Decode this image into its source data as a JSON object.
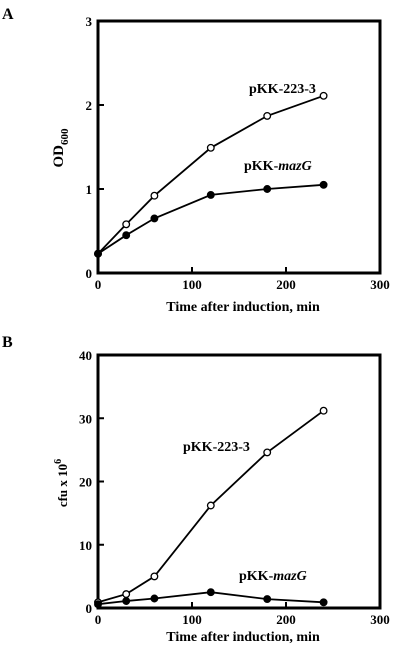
{
  "chart_data": [
    {
      "type": "line",
      "panel_label": "A",
      "xlabel": "Time after induction, min",
      "ylabel_main": "OD",
      "ylabel_sub": "600",
      "xlim": [
        0,
        300
      ],
      "ylim": [
        0,
        3
      ],
      "x_ticks": [
        "0",
        "100",
        "200",
        "300"
      ],
      "y_ticks": [
        "0",
        "1",
        "2",
        "3"
      ],
      "series": [
        {
          "name": "pKK-223-3",
          "label_main": "pKK-223-3",
          "label_italic": "",
          "marker": "open",
          "x": [
            0,
            30,
            60,
            120,
            180,
            240
          ],
          "y": [
            0.23,
            0.58,
            0.92,
            1.49,
            1.87,
            2.11
          ]
        },
        {
          "name": "pKK-mazG",
          "label_main": "pKK-",
          "label_italic": "mazG",
          "marker": "filled",
          "x": [
            0,
            30,
            60,
            120,
            180,
            240
          ],
          "y": [
            0.23,
            0.45,
            0.65,
            0.93,
            1.0,
            1.05
          ]
        }
      ]
    },
    {
      "type": "line",
      "panel_label": "B",
      "xlabel": "Time after induction, min",
      "ylabel_main": "cfu x 10",
      "ylabel_sup": "6",
      "xlim": [
        0,
        300
      ],
      "ylim": [
        0,
        40
      ],
      "x_ticks": [
        "0",
        "100",
        "200",
        "300"
      ],
      "y_ticks": [
        "0",
        "10",
        "20",
        "30",
        "40"
      ],
      "series": [
        {
          "name": "pKK-223-3",
          "label_main": "pKK-223-3",
          "label_italic": "",
          "marker": "open",
          "x": [
            0,
            30,
            60,
            120,
            180,
            240
          ],
          "y": [
            0.9,
            2.2,
            5.0,
            16.2,
            24.6,
            31.2
          ]
        },
        {
          "name": "pKK-mazG",
          "label_main": "pKK-",
          "label_italic": "mazG",
          "marker": "filled",
          "x": [
            0,
            30,
            60,
            120,
            180,
            240
          ],
          "y": [
            0.6,
            1.1,
            1.5,
            2.5,
            1.4,
            0.9
          ]
        }
      ]
    }
  ]
}
